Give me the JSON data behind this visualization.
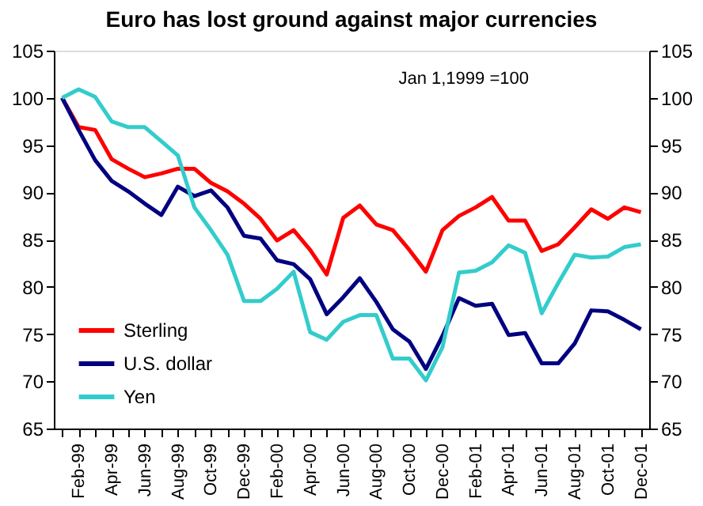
{
  "chart_data": {
    "type": "line",
    "title": "Euro has lost ground against major currencies",
    "annotations": [
      "Jan 1,1999 =100"
    ],
    "categories": [
      null,
      "Feb-99",
      null,
      "Apr-99",
      null,
      "Jun-99",
      null,
      "Aug-99",
      null,
      "Oct-99",
      null,
      "Dec-99",
      null,
      "Feb-00",
      null,
      "Apr-00",
      null,
      "Jun-00",
      null,
      "Aug-00",
      null,
      "Oct-00",
      null,
      "Dec-00",
      null,
      "Feb-01",
      null,
      "Apr-01",
      null,
      "Jun-01",
      null,
      "Aug-01",
      null,
      "Oct-01",
      null,
      "Dec-01"
    ],
    "series": [
      {
        "name": "Sterling",
        "color": "#ff0000",
        "values": [
          100,
          96.9,
          96.6,
          93.5,
          92.5,
          91.6,
          92,
          92.5,
          92.5,
          91,
          90.1,
          88.8,
          87.2,
          84.9,
          86,
          83.9,
          81.3,
          87.3,
          88.6,
          86.6,
          86,
          83.9,
          81.6,
          86,
          87.5,
          88.4,
          89.5,
          87,
          87,
          83.8,
          84.5,
          86.3,
          88.2,
          87.2,
          88.4,
          87.9
        ]
      },
      {
        "name": "U.S. dollar",
        "color": "#000080",
        "values": [
          100,
          96.6,
          93.4,
          91.2,
          90.1,
          88.8,
          87.6,
          90.6,
          89.6,
          90.2,
          88.4,
          85.4,
          85.1,
          82.8,
          82.4,
          80.8,
          77.1,
          78.9,
          80.9,
          78.4,
          75.5,
          74.2,
          71.3,
          74.8,
          78.8,
          78,
          78.2,
          74.9,
          75.1,
          71.9,
          71.9,
          74,
          77.5,
          77.4,
          76.5,
          75.5
        ]
      },
      {
        "name": "Yen",
        "color": "#33cccc",
        "values": [
          100,
          100.9,
          100.1,
          97.5,
          96.9,
          96.9,
          95.4,
          93.9,
          88.4,
          86,
          83.4,
          78.5,
          78.5,
          79.8,
          81.6,
          75.2,
          74.4,
          76.3,
          77,
          77,
          72.4,
          72.4,
          70.1,
          73.6,
          81.5,
          81.7,
          82.6,
          84.4,
          83.6,
          77.2,
          80.4,
          83.4,
          83.1,
          83.2,
          84.2,
          84.5
        ]
      }
    ],
    "ylim": [
      65,
      105
    ],
    "yticks": [
      65,
      70,
      75,
      80,
      85,
      90,
      95,
      100,
      105
    ],
    "y2lim": [
      65,
      105
    ],
    "y2ticks": [
      65,
      70,
      75,
      80,
      85,
      90,
      95,
      100,
      105
    ],
    "legend": "bottom left",
    "grid": false,
    "marker": "none",
    "line_style": "solid"
  }
}
